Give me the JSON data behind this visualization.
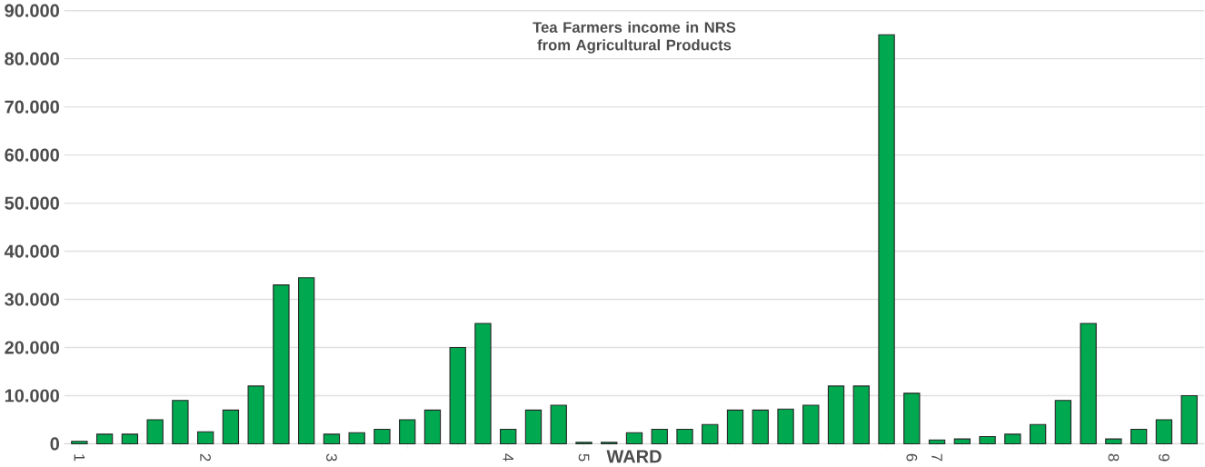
{
  "chart_data": {
    "type": "bar",
    "title": "Tea Farmers income in NRS from Agricultural Products",
    "xlabel": "WARD",
    "categories": [
      "1",
      null,
      null,
      null,
      null,
      "2",
      null,
      null,
      null,
      null,
      "3",
      null,
      null,
      null,
      null,
      null,
      null,
      "4",
      null,
      null,
      "5",
      null,
      null,
      null,
      null,
      null,
      null,
      null,
      null,
      null,
      null,
      null,
      null,
      "6",
      "7",
      null,
      null,
      null,
      null,
      null,
      null,
      "8",
      null,
      "9",
      null
    ],
    "values": [
      500,
      2000,
      2000,
      5000,
      9000,
      2500,
      7000,
      12000,
      33000,
      34500,
      2000,
      2300,
      3000,
      5000,
      7000,
      20000,
      25000,
      3000,
      7000,
      8000,
      300,
      300,
      2300,
      3000,
      3000,
      4000,
      7000,
      7000,
      7200,
      8000,
      12000,
      12000,
      85000,
      10500,
      800,
      1000,
      1500,
      2000,
      4000,
      9000,
      25000,
      1000,
      3000,
      5000,
      10000
    ],
    "color": "#00a84f",
    "ylim": [
      0,
      90000
    ],
    "yticks": [
      0,
      {
        "value": 10000,
        "label": "10.000"
      },
      {
        "value": 20000,
        "label": "20.000"
      },
      {
        "value": 30000,
        "label": "30.000"
      },
      {
        "value": 40000,
        "label": "40.000"
      },
      {
        "value": 50000,
        "label": "50.000"
      },
      {
        "value": 60000,
        "label": "60.000"
      },
      {
        "value": 70000,
        "label": "70.000"
      },
      {
        "value": 80000,
        "label": "80.000"
      },
      {
        "value": 90000,
        "label": "90.000"
      }
    ],
    "grid": "y"
  }
}
